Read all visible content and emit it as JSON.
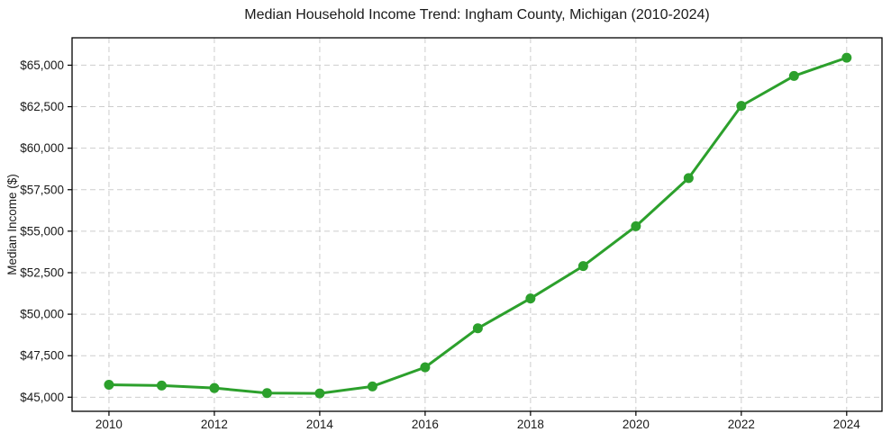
{
  "figure": {
    "background": "#ffffff"
  },
  "chart_data": {
    "type": "line",
    "title": "Median Household Income Trend: Ingham County, Michigan (2010-2024)",
    "xlabel": "",
    "ylabel": "Median Income ($)",
    "x": [
      2010,
      2011,
      2012,
      2013,
      2014,
      2015,
      2016,
      2017,
      2018,
      2019,
      2020,
      2021,
      2022,
      2023,
      2024
    ],
    "series": [
      {
        "name": "Median household income",
        "values": [
          45750,
          45700,
          45550,
          45250,
          45230,
          45650,
          46800,
          49150,
          50950,
          52900,
          55300,
          58200,
          62550,
          64350,
          65450
        ],
        "color": "#2ca02c",
        "marker": "circle",
        "line_width": 3,
        "marker_radius": 5.5
      }
    ],
    "xticks": [
      2010,
      2012,
      2014,
      2016,
      2018,
      2020,
      2022,
      2024
    ],
    "yticks": [
      45000,
      47500,
      50000,
      52500,
      55000,
      57500,
      60000,
      62500,
      65000
    ],
    "ytick_prefix": "$",
    "xlim": [
      2009.3,
      2024.67
    ],
    "ylim": [
      44150,
      66650
    ],
    "grid": true,
    "grid_style": "dashed",
    "grid_color": "#cdcdcd",
    "axis_color": "#000000",
    "text_color": "#1a1a1a",
    "legend": "none"
  }
}
